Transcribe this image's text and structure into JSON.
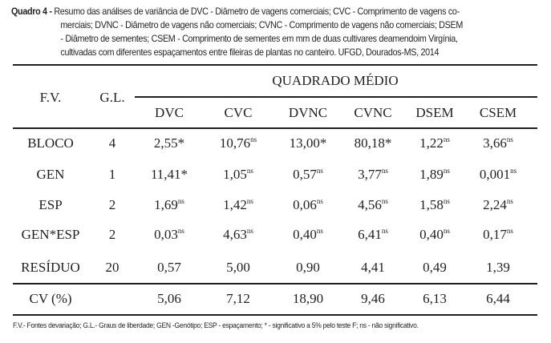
{
  "caption": {
    "label": "Quadro 4 -",
    "lines": [
      "Resumo das análises de variância de DVC - Diâmetro de vagens comerciais; CVC - Comprimento de vagens co-",
      "merciais; DVNC - Diâmetro de vagens não comerciais; CVNC - Comprimento de vagens não comerciais; DSEM",
      "- Diâmetro de sementes; CSEM - Comprimento de sementes em mm de duas cultivares deamendoim Virgínia,",
      "cultivadas com diferentes espaçamentos entre fileiras de plantas no canteiro. UFGD, Dourados-MS, 2014"
    ]
  },
  "table": {
    "fv_header": "F.V.",
    "gl_header": "G.L.",
    "group_header": "QUADRADO MÉDIO",
    "columns": [
      "DVC",
      "CVC",
      "DVNC",
      "CVNC",
      "DSEM",
      "CSEM"
    ],
    "rows": [
      {
        "fv": "BLOCO",
        "gl": "4",
        "cells": [
          [
            "2,55*",
            ""
          ],
          [
            "10,76",
            "ns"
          ],
          [
            "13,00*",
            ""
          ],
          [
            "80,18*",
            ""
          ],
          [
            "1,22",
            "ns"
          ],
          [
            "3,66",
            "ns"
          ]
        ]
      },
      {
        "fv": "GEN",
        "gl": "1",
        "cells": [
          [
            "11,41*",
            ""
          ],
          [
            "1,05",
            "ns"
          ],
          [
            "0,57",
            "ns"
          ],
          [
            "3,77",
            "ns"
          ],
          [
            "1,89",
            "ns"
          ],
          [
            "0,001",
            "ns"
          ]
        ]
      },
      {
        "fv": "ESP",
        "gl": "2",
        "cells": [
          [
            "1,69",
            "ns"
          ],
          [
            "1,42",
            "ns"
          ],
          [
            "0,06",
            "ns"
          ],
          [
            "4,56",
            "ns"
          ],
          [
            "1,58",
            "ns"
          ],
          [
            "2,24",
            "ns"
          ]
        ]
      },
      {
        "fv": "GEN*ESP",
        "gl": "2",
        "cells": [
          [
            "0,03",
            "ns"
          ],
          [
            "4,63",
            "ns"
          ],
          [
            "0,40",
            "ns"
          ],
          [
            "6,41",
            "ns"
          ],
          [
            "0,40",
            "ns"
          ],
          [
            "0,17",
            "ns"
          ]
        ]
      },
      {
        "fv": "RESÍDUO",
        "gl": "20",
        "cells": [
          [
            "0,57",
            ""
          ],
          [
            "5,00",
            ""
          ],
          [
            "0,90",
            ""
          ],
          [
            "4,41",
            ""
          ],
          [
            "0,49",
            ""
          ],
          [
            "1,39",
            ""
          ]
        ]
      },
      {
        "fv": "CV (%)",
        "gl": "",
        "cells": [
          [
            "5,06",
            ""
          ],
          [
            "7,12",
            ""
          ],
          [
            "18,90",
            ""
          ],
          [
            "9,46",
            ""
          ],
          [
            "6,13",
            ""
          ],
          [
            "6,44",
            ""
          ]
        ]
      }
    ]
  },
  "footnote": "F.V.- Fontes devariação; G.L.- Graus de liberdade; GEN -Genótipo; ESP - espaçamento; * - significativo a 5% pelo teste F; ns - não significativo."
}
